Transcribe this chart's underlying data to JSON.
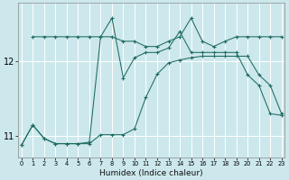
{
  "xlabel": "Humidex (Indice chaleur)",
  "bg_color": "#cce8ec",
  "line_color": "#1e6b60",
  "grid_color": "#ffffff",
  "x_ticks": [
    0,
    1,
    2,
    3,
    4,
    5,
    6,
    7,
    8,
    9,
    10,
    11,
    12,
    13,
    14,
    15,
    16,
    17,
    18,
    19,
    20,
    21,
    22,
    23
  ],
  "y_ticks": [
    11,
    12
  ],
  "xlim": [
    -0.3,
    23.3
  ],
  "ylim": [
    10.72,
    12.78
  ],
  "series1_x": [
    0,
    1,
    2,
    3,
    4,
    5,
    6,
    7,
    8,
    9,
    10,
    11,
    12,
    13,
    14,
    15,
    16,
    17,
    18,
    19,
    20,
    21,
    22,
    23
  ],
  "series1_y": [
    10.88,
    11.15,
    10.97,
    10.9,
    10.9,
    10.9,
    10.9,
    11.02,
    11.02,
    11.02,
    11.1,
    11.52,
    11.83,
    11.98,
    12.02,
    12.05,
    12.07,
    12.07,
    12.07,
    12.07,
    12.07,
    11.82,
    11.68,
    11.3
  ],
  "series2_x": [
    1,
    2,
    3,
    4,
    5,
    6,
    7,
    8,
    9,
    10,
    11,
    12,
    13,
    14,
    15,
    16,
    17,
    18,
    19,
    20,
    21,
    22,
    23
  ],
  "series2_y": [
    12.33,
    12.33,
    12.33,
    12.33,
    12.33,
    12.33,
    12.33,
    12.33,
    12.27,
    12.27,
    12.2,
    12.2,
    12.27,
    12.33,
    12.58,
    12.27,
    12.2,
    12.27,
    12.33,
    12.33,
    12.33,
    12.33,
    12.33
  ],
  "series3_x": [
    0,
    1,
    2,
    3,
    4,
    5,
    6,
    7,
    8,
    9,
    10,
    11,
    12,
    13,
    14,
    15,
    16,
    17,
    18,
    19,
    20,
    21,
    22,
    23
  ],
  "series3_y": [
    10.88,
    11.15,
    10.97,
    10.9,
    10.9,
    10.9,
    10.92,
    12.33,
    12.58,
    11.78,
    12.05,
    12.12,
    12.12,
    12.18,
    12.4,
    12.12,
    12.12,
    12.12,
    12.12,
    12.12,
    11.82,
    11.68,
    11.3,
    11.28
  ]
}
